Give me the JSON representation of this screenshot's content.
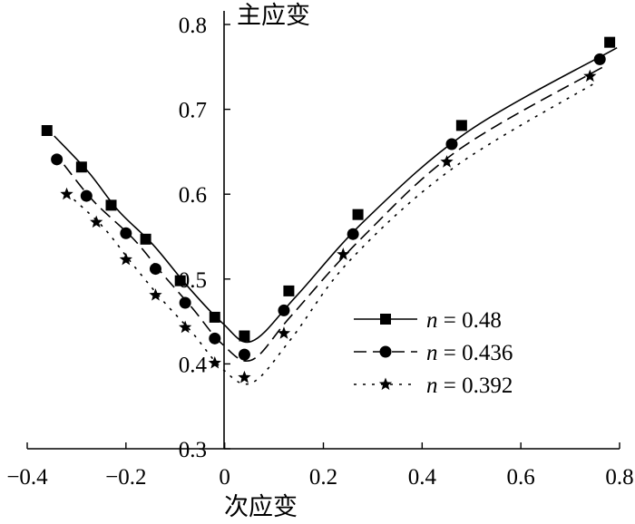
{
  "chart_data": {
    "type": "line",
    "xlabel": "次应变",
    "ylabel": "主应变",
    "xlim": [
      -0.4,
      0.8
    ],
    "ylim": [
      0.3,
      0.8
    ],
    "x_ticks": [
      -0.4,
      -0.2,
      0,
      0.2,
      0.4,
      0.6,
      0.8
    ],
    "x_tick_labels": [
      "−0.4",
      "−0.2",
      "0",
      "0.2",
      "0.4",
      "0.6",
      "0.8"
    ],
    "y_ticks": [
      0.3,
      0.4,
      0.5,
      0.6,
      0.7,
      0.8
    ],
    "y_tick_labels": [
      "0.3",
      "0.4",
      "0.5",
      "0.6",
      "0.7",
      "0.8"
    ],
    "grid": false,
    "legend_position": "right",
    "series": [
      {
        "label_prefix": "n",
        "label_value": " = 0.48",
        "marker": "square",
        "line": "solid",
        "x": [
          -0.36,
          -0.29,
          -0.23,
          -0.16,
          -0.09,
          -0.02,
          0.04,
          0.13,
          0.27,
          0.48,
          0.78
        ],
        "y": [
          0.675,
          0.632,
          0.587,
          0.547,
          0.498,
          0.455,
          0.433,
          0.486,
          0.576,
          0.681,
          0.779
        ]
      },
      {
        "label_prefix": "n",
        "label_value": " = 0.436",
        "marker": "circle",
        "line": "dashed",
        "x": [
          -0.34,
          -0.28,
          -0.2,
          -0.14,
          -0.08,
          -0.02,
          0.04,
          0.12,
          0.26,
          0.46,
          0.76
        ],
        "y": [
          0.641,
          0.598,
          0.554,
          0.512,
          0.472,
          0.43,
          0.411,
          0.463,
          0.553,
          0.659,
          0.759
        ]
      },
      {
        "label_prefix": "n",
        "label_value": " = 0.392",
        "marker": "star",
        "line": "dotted",
        "x": [
          -0.32,
          -0.26,
          -0.2,
          -0.14,
          -0.08,
          -0.02,
          0.04,
          0.12,
          0.24,
          0.45,
          0.74
        ],
        "y": [
          0.6,
          0.567,
          0.523,
          0.481,
          0.443,
          0.401,
          0.384,
          0.436,
          0.529,
          0.638,
          0.739
        ]
      }
    ]
  }
}
